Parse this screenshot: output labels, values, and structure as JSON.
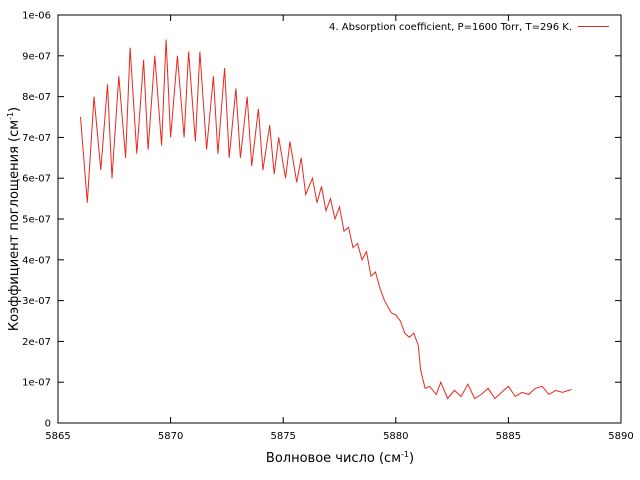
{
  "chart_data": {
    "type": "line",
    "xlabel_main": "Волновое число (см",
    "xlabel_sup": "-1",
    "xlabel_end": ")",
    "ylabel_main": "Коэффициент поглощения (см",
    "ylabel_sup": "-1",
    "ylabel_end": ")",
    "xlim": [
      5865,
      5890
    ],
    "ylim": [
      0,
      1e-06
    ],
    "x_ticks": [
      5865,
      5870,
      5875,
      5880,
      5885,
      5890
    ],
    "x_tick_labels": [
      "5865",
      "5870",
      "5875",
      "5880",
      "5885",
      "5890"
    ],
    "y_ticks": [
      0,
      1e-07,
      2e-07,
      3e-07,
      4e-07,
      5e-07,
      6e-07,
      7e-07,
      8e-07,
      9e-07,
      1e-06
    ],
    "y_tick_labels": [
      "0",
      "1e-07",
      "2e-07",
      "3e-07",
      "4e-07",
      "5e-07",
      "6e-07",
      "7e-07",
      "8e-07",
      "9e-07",
      "1e-06"
    ],
    "grid": false,
    "legend_position": "top-right",
    "series": [
      {
        "name": "4. Absorption coefficient, P=1600 Torr, T=296 K.",
        "color": "#e8281e",
        "x": [
          5866.0,
          5866.3,
          5866.6,
          5866.9,
          5867.2,
          5867.4,
          5867.7,
          5868.0,
          5868.2,
          5868.5,
          5868.8,
          5869.0,
          5869.3,
          5869.6,
          5869.8,
          5870.0,
          5870.3,
          5870.6,
          5870.8,
          5871.1,
          5871.3,
          5871.6,
          5871.9,
          5872.1,
          5872.4,
          5872.6,
          5872.9,
          5873.1,
          5873.4,
          5873.6,
          5873.9,
          5874.1,
          5874.4,
          5874.6,
          5874.8,
          5875.1,
          5875.3,
          5875.6,
          5875.8,
          5876.0,
          5876.3,
          5876.5,
          5876.7,
          5876.9,
          5877.1,
          5877.3,
          5877.5,
          5877.7,
          5877.9,
          5878.1,
          5878.3,
          5878.5,
          5878.7,
          5878.9,
          5879.1,
          5879.3,
          5879.5,
          5879.8,
          5880.0,
          5880.2,
          5880.4,
          5880.6,
          5880.8,
          5881.0,
          5881.1,
          5881.3,
          5881.5,
          5881.8,
          5882.0,
          5882.3,
          5882.6,
          5882.9,
          5883.2,
          5883.5,
          5883.8,
          5884.1,
          5884.4,
          5884.7,
          5885.0,
          5885.3,
          5885.6,
          5885.9,
          5886.2,
          5886.5,
          5886.8,
          5887.1,
          5887.4,
          5887.8
        ],
        "y": [
          7.5e-07,
          5.4e-07,
          8e-07,
          6.2e-07,
          8.3e-07,
          6e-07,
          8.5e-07,
          6.5e-07,
          9.2e-07,
          6.6e-07,
          8.9e-07,
          6.7e-07,
          9e-07,
          6.8e-07,
          9.4e-07,
          7e-07,
          9e-07,
          7e-07,
          9.1e-07,
          6.9e-07,
          9.1e-07,
          6.7e-07,
          8.5e-07,
          6.6e-07,
          8.7e-07,
          6.5e-07,
          8.2e-07,
          6.5e-07,
          8e-07,
          6.3e-07,
          7.7e-07,
          6.2e-07,
          7.3e-07,
          6.1e-07,
          7e-07,
          6e-07,
          6.9e-07,
          5.9e-07,
          6.5e-07,
          5.6e-07,
          6e-07,
          5.4e-07,
          5.8e-07,
          5.2e-07,
          5.5e-07,
          5e-07,
          5.3e-07,
          4.7e-07,
          4.8e-07,
          4.3e-07,
          4.4e-07,
          4e-07,
          4.2e-07,
          3.6e-07,
          3.7e-07,
          3.3e-07,
          3e-07,
          2.7e-07,
          2.65e-07,
          2.5e-07,
          2.2e-07,
          2.1e-07,
          2.2e-07,
          1.9e-07,
          1.3e-07,
          8.5e-08,
          9e-08,
          7e-08,
          1e-07,
          6e-08,
          8e-08,
          6.5e-08,
          9.5e-08,
          6e-08,
          7e-08,
          8.5e-08,
          6e-08,
          7.5e-08,
          9e-08,
          6.5e-08,
          7.5e-08,
          7e-08,
          8.5e-08,
          9e-08,
          7e-08,
          8e-08,
          7.5e-08,
          8.2e-08
        ]
      }
    ]
  }
}
